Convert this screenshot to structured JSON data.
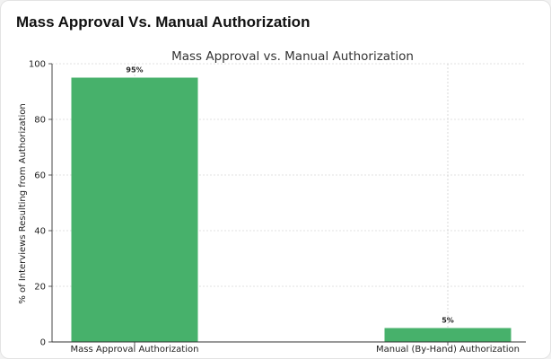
{
  "card": {
    "title": "Mass Approval Vs. Manual Authorization"
  },
  "chart_data": {
    "type": "bar",
    "title": "Mass Approval vs. Manual Authorization",
    "xlabel": "",
    "ylabel": "% of Interviews Resulting from Authorization",
    "categories": [
      "Mass Approval Authorization",
      "Manual (By-Hand) Authorization"
    ],
    "values": [
      95,
      5
    ],
    "data_labels": [
      "95%",
      "5%"
    ],
    "ylim": [
      0,
      100
    ],
    "yticks": [
      0,
      20,
      40,
      60,
      80,
      100
    ],
    "grid": true,
    "bar_color": "#47b16b"
  }
}
